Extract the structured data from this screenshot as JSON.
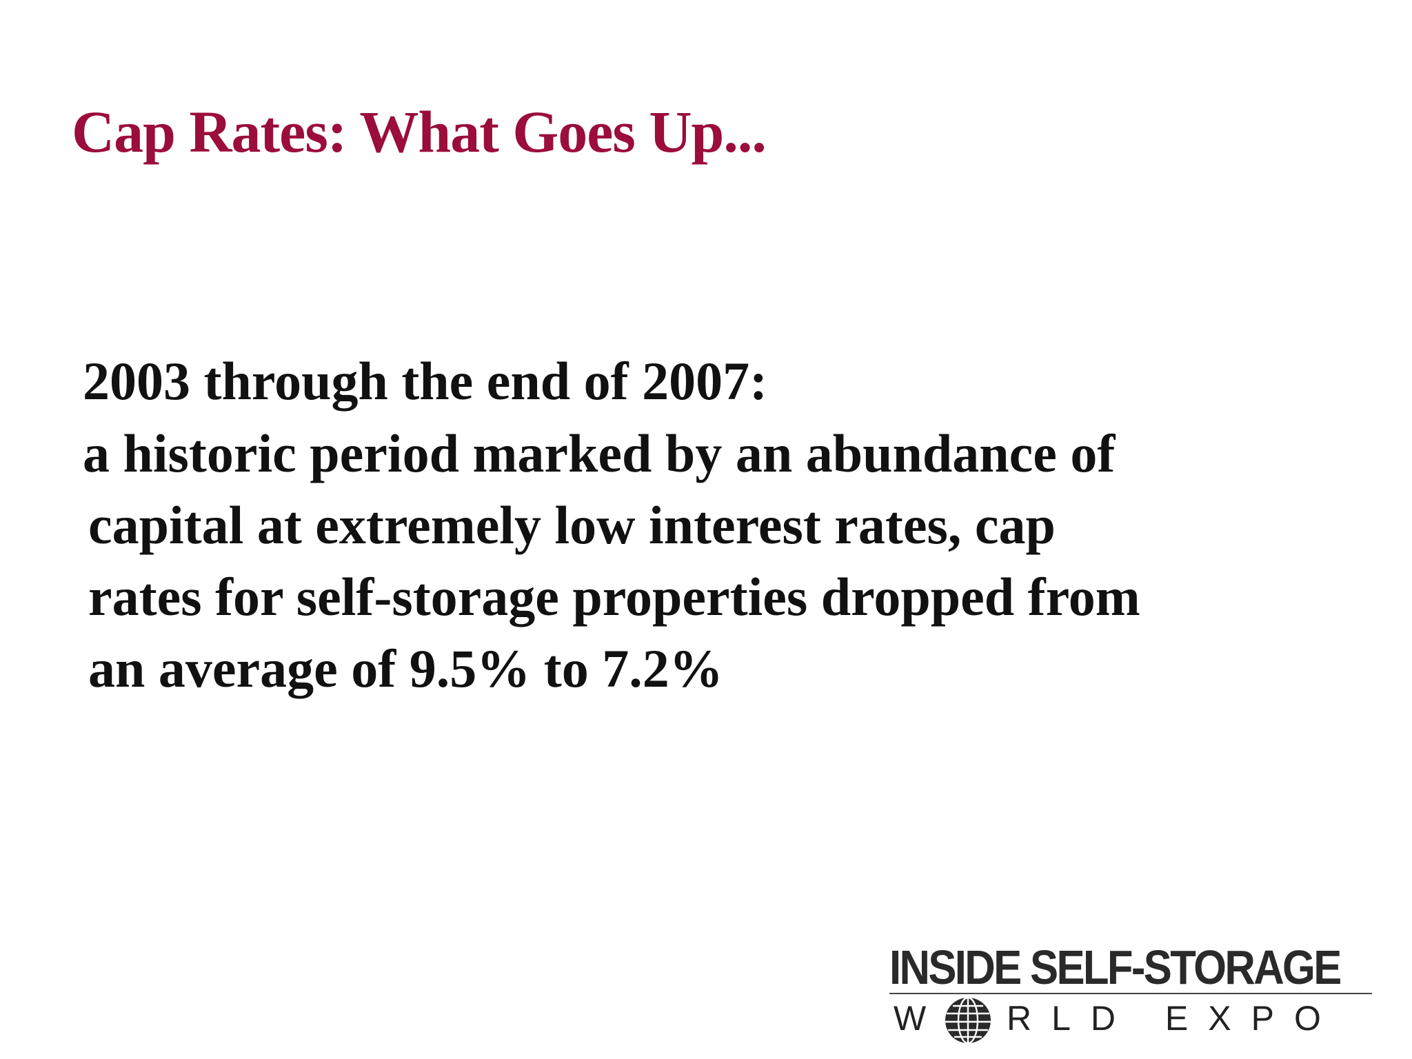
{
  "slide": {
    "title": "Cap Rates: What Goes Up...",
    "lead": "2003 through the end of 2007:",
    "body_lines": [
      "a historic period marked by an abundance of",
      "capital at extremely low interest rates, cap",
      "rates for self-storage properties dropped from",
      "an average of 9.5% to 7.2%"
    ]
  },
  "logo": {
    "line1": "INSIDE SELF-STORAGE",
    "line2_prefix": "W",
    "line2_suffix": "RLD EXPO",
    "globe_icon": "globe-icon"
  },
  "colors": {
    "title": "#9b0d3a",
    "text": "#111111",
    "background": "#ffffff"
  }
}
